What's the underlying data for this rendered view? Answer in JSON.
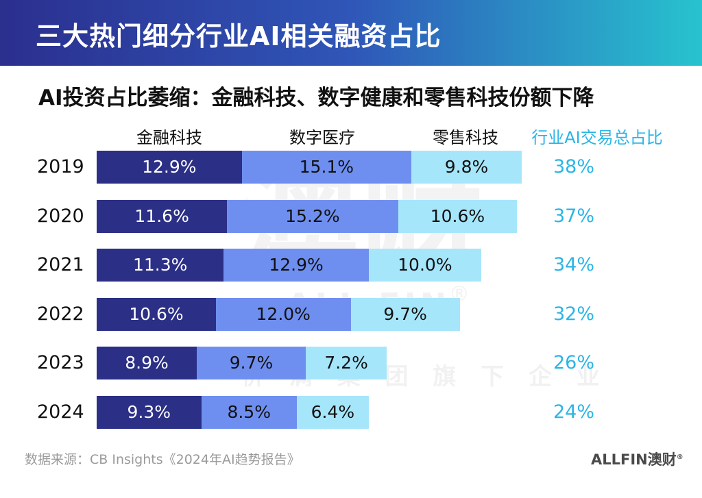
{
  "header": {
    "title": "三大热门细分行业AI相关融资占比",
    "subtitle": "AI投资占比萎缩：金融科技、数字健康和零售科技份额下降"
  },
  "colors": {
    "fintech": "#2b2f86",
    "digital_health": "#6f8ff0",
    "retail_tech": "#a6e6fb",
    "total": "#2ab5e6"
  },
  "watermark": {
    "cn": "澳财",
    "en": "ALL FIN",
    "reg": "®",
    "group": "侨 满 集 团 旗 下 企 业"
  },
  "chart_data": {
    "type": "bar",
    "stacked": true,
    "orientation": "horizontal",
    "categories": [
      "2019",
      "2020",
      "2021",
      "2022",
      "2023",
      "2024"
    ],
    "series": [
      {
        "name": "金融科技",
        "values": [
          12.9,
          11.6,
          11.3,
          10.6,
          8.9,
          9.3
        ],
        "labels": [
          "12.9%",
          "11.6%",
          "11.3%",
          "10.6%",
          "8.9%",
          "9.3%"
        ]
      },
      {
        "name": "数字医疗",
        "values": [
          15.1,
          15.2,
          12.9,
          12.0,
          9.7,
          8.5
        ],
        "labels": [
          "15.1%",
          "15.2%",
          "12.9%",
          "12.0%",
          "9.7%",
          "8.5%"
        ]
      },
      {
        "name": "零售科技",
        "values": [
          9.8,
          10.6,
          10.0,
          9.7,
          7.2,
          6.4
        ],
        "labels": [
          "9.8%",
          "10.6%",
          "10.0%",
          "9.7%",
          "7.2%",
          "6.4%"
        ]
      }
    ],
    "total": {
      "name": "行业AI交易总占比",
      "values": [
        38,
        37,
        34,
        32,
        26,
        24
      ],
      "labels": [
        "38%",
        "37%",
        "34%",
        "32%",
        "26%",
        "24%"
      ]
    },
    "grid": false,
    "legend": "top"
  },
  "footer": {
    "source": "数据来源：CB Insights《2024年AI趋势报告》",
    "logo_en": "ALLFIN",
    "logo_cn": "澳财",
    "logo_reg": "®"
  }
}
